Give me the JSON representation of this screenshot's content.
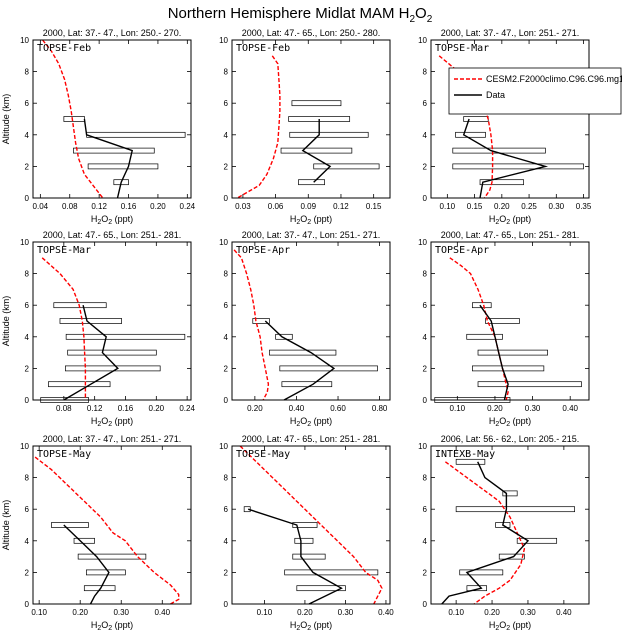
{
  "figure": {
    "title": "Northern Hemisphere Midlat MAM H",
    "title_species": "2",
    "title_o": "O",
    "title_species2": "2"
  },
  "legend": {
    "model_label": "CESM2.F2000climo.C96.C96.mg17",
    "data_label": "Data",
    "model_color": "#ff0000",
    "data_color": "#000000",
    "placement": "top-right of panel 3"
  },
  "chart_data": [
    {
      "type": "line",
      "panel_header": "2000, Lat: 37.- 47., Lon: 250.- 270.",
      "campaign": "TOPSE-Feb",
      "xlabel": "H2O2 (ppt)",
      "ylabel": "Altitude (km)",
      "xlim": [
        0.03,
        0.245
      ],
      "ylim": [
        0,
        10
      ],
      "xticks": [
        0.04,
        0.08,
        0.12,
        0.16,
        0.2,
        0.24
      ],
      "xtick_labels": [
        "0.04",
        "0.08",
        "0.12",
        "0.16",
        "0.20",
        "0.24"
      ],
      "yticks": [
        0,
        2,
        4,
        6,
        8,
        10
      ],
      "model": {
        "x": [
          0.043,
          0.055,
          0.065,
          0.073,
          0.078,
          0.082,
          0.085,
          0.088,
          0.092,
          0.1,
          0.125
        ],
        "y": [
          10,
          9.3,
          8.5,
          7.5,
          6.5,
          5.5,
          4.5,
          3.5,
          2.5,
          1.5,
          0
        ]
      },
      "data": {
        "x": [
          0.1,
          0.103,
          0.165,
          0.16,
          0.15,
          0.145
        ],
        "y": [
          5,
          4,
          3,
          2,
          1,
          0
        ]
      },
      "ranges": [
        {
          "y": 5,
          "lo": 0.072,
          "hi": 0.1
        },
        {
          "y": 4,
          "lo": 0.103,
          "hi": 0.237
        },
        {
          "y": 3,
          "lo": 0.085,
          "hi": 0.195
        },
        {
          "y": 2,
          "lo": 0.105,
          "hi": 0.2
        },
        {
          "y": 1,
          "lo": 0.14,
          "hi": 0.16
        }
      ]
    },
    {
      "type": "line",
      "panel_header": "2000, Lat: 47.- 65., Lon: 250.- 280.",
      "campaign": "TOPSE-Feb",
      "xlabel": "H2O2 (ppt)",
      "ylabel": "",
      "xlim": [
        0.02,
        0.165
      ],
      "ylim": [
        0,
        10
      ],
      "xticks": [
        0.03,
        0.06,
        0.09,
        0.12,
        0.15
      ],
      "xtick_labels": [
        "0.03",
        "0.06",
        "0.09",
        "0.12",
        "0.15"
      ],
      "yticks": [
        0,
        2,
        4,
        6,
        8,
        10
      ],
      "model": {
        "x": [
          0.057,
          0.062,
          0.063,
          0.064,
          0.064,
          0.063,
          0.062,
          0.058,
          0.052,
          0.045,
          0.025
        ],
        "y": [
          9,
          8.5,
          7.5,
          6.5,
          5.5,
          4.5,
          3.5,
          2.5,
          1.5,
          0.8,
          0
        ]
      },
      "data": {
        "x": [
          0.1,
          0.1,
          0.085,
          0.11,
          0.095
        ],
        "y": [
          5,
          4,
          3,
          2,
          1
        ]
      },
      "ranges": [
        {
          "y": 6,
          "lo": 0.075,
          "hi": 0.12
        },
        {
          "y": 5,
          "lo": 0.072,
          "hi": 0.128
        },
        {
          "y": 4,
          "lo": 0.073,
          "hi": 0.145
        },
        {
          "y": 3,
          "lo": 0.065,
          "hi": 0.13
        },
        {
          "y": 2,
          "lo": 0.095,
          "hi": 0.155
        },
        {
          "y": 1,
          "lo": 0.081,
          "hi": 0.105
        }
      ]
    },
    {
      "type": "line",
      "panel_header": "2000, Lat: 37.- 47., Lon: 251.- 271.",
      "campaign": "TOPSE-Mar",
      "xlabel": "H2O2 (ppt)",
      "ylabel": "",
      "xlim": [
        0.07,
        0.36
      ],
      "ylim": [
        0,
        10
      ],
      "xticks": [
        0.1,
        0.15,
        0.2,
        0.25,
        0.3,
        0.35
      ],
      "xtick_labels": [
        "0.10",
        "0.15",
        "0.20",
        "0.25",
        "0.30",
        "0.35"
      ],
      "yticks": [
        0,
        2,
        4,
        6,
        8,
        10
      ],
      "model": {
        "x": [
          0.085,
          0.12,
          0.145,
          0.165,
          0.175,
          0.18,
          0.183,
          0.183,
          0.182,
          0.178,
          0.168
        ],
        "y": [
          9,
          8,
          7,
          6,
          5,
          4,
          3,
          2,
          1,
          0.5,
          0
        ]
      },
      "data": {
        "x": [
          0.14,
          0.13,
          0.18,
          0.28,
          0.165,
          0.16
        ],
        "y": [
          5,
          4,
          3,
          2,
          1,
          0
        ]
      },
      "ranges": [
        {
          "y": 5,
          "lo": 0.13,
          "hi": 0.175
        },
        {
          "y": 4,
          "lo": 0.115,
          "hi": 0.17
        },
        {
          "y": 3,
          "lo": 0.11,
          "hi": 0.28
        },
        {
          "y": 2,
          "lo": 0.11,
          "hi": 0.35
        },
        {
          "y": 1,
          "lo": 0.16,
          "hi": 0.24
        }
      ]
    },
    {
      "type": "line",
      "panel_header": "2000, Lat: 47.- 65., Lon: 251.- 281.",
      "campaign": "TOPSE-Mar",
      "xlabel": "H2O2 (ppt)",
      "ylabel": "Altitude (km)",
      "xlim": [
        0.04,
        0.245
      ],
      "ylim": [
        0,
        10
      ],
      "xticks": [
        0.08,
        0.12,
        0.16,
        0.2,
        0.24
      ],
      "xtick_labels": [
        "0.08",
        "0.12",
        "0.16",
        "0.20",
        "0.24"
      ],
      "yticks": [
        0,
        2,
        4,
        6,
        8,
        10
      ],
      "model": {
        "x": [
          0.052,
          0.075,
          0.092,
          0.1,
          0.104,
          0.106,
          0.107,
          0.108,
          0.108,
          0.108,
          0.108
        ],
        "y": [
          9,
          8,
          7,
          6,
          5,
          4,
          3,
          2,
          1,
          0.5,
          0
        ]
      },
      "data": {
        "x": [
          0.105,
          0.11,
          0.135,
          0.13,
          0.15,
          0.115,
          0.08
        ],
        "y": [
          6,
          5,
          4,
          3,
          2,
          1,
          0
        ]
      },
      "ranges": [
        {
          "y": 6,
          "lo": 0.067,
          "hi": 0.135
        },
        {
          "y": 5,
          "lo": 0.075,
          "hi": 0.155
        },
        {
          "y": 4,
          "lo": 0.083,
          "hi": 0.237
        },
        {
          "y": 3,
          "lo": 0.085,
          "hi": 0.2
        },
        {
          "y": 2,
          "lo": 0.082,
          "hi": 0.205
        },
        {
          "y": 1,
          "lo": 0.06,
          "hi": 0.14
        },
        {
          "y": 0,
          "lo": 0.05,
          "hi": 0.112
        }
      ]
    },
    {
      "type": "line",
      "panel_header": "2000, Lat: 37.- 47., Lon: 251.- 271.",
      "campaign": "TOPSE-Apr",
      "xlabel": "H2O2 (ppt)",
      "ylabel": "",
      "xlim": [
        0.09,
        0.85
      ],
      "ylim": [
        0,
        10
      ],
      "xticks": [
        0.2,
        0.4,
        0.6,
        0.8
      ],
      "xtick_labels": [
        "0.20",
        "0.40",
        "0.60",
        "0.80"
      ],
      "yticks": [
        0,
        2,
        4,
        6,
        8,
        10
      ],
      "model": {
        "x": [
          0.1,
          0.135,
          0.16,
          0.18,
          0.195,
          0.205,
          0.215,
          0.225,
          0.235,
          0.25,
          0.265,
          0.26,
          0.24
        ],
        "y": [
          9.5,
          9,
          8,
          7,
          6,
          5,
          4.5,
          4,
          3,
          2,
          1,
          0.5,
          0
        ]
      },
      "data": {
        "x": [
          0.25,
          0.33,
          0.47,
          0.58,
          0.48,
          0.34
        ],
        "y": [
          5,
          4,
          3,
          2,
          1,
          0
        ]
      },
      "ranges": [
        {
          "y": 5,
          "lo": 0.19,
          "hi": 0.27
        },
        {
          "y": 4,
          "lo": 0.3,
          "hi": 0.38
        },
        {
          "y": 3,
          "lo": 0.27,
          "hi": 0.59
        },
        {
          "y": 2,
          "lo": 0.32,
          "hi": 0.79
        },
        {
          "y": 1,
          "lo": 0.33,
          "hi": 0.57
        }
      ]
    },
    {
      "type": "line",
      "panel_header": "2000, Lat: 47.- 65., Lon: 251.- 281.",
      "campaign": "TOPSE-Apr",
      "xlabel": "H2O2 (ppt)",
      "ylabel": "",
      "xlim": [
        0.03,
        0.45
      ],
      "ylim": [
        0,
        10
      ],
      "xticks": [
        0.1,
        0.2,
        0.3,
        0.4
      ],
      "xtick_labels": [
        "0.10",
        "0.20",
        "0.30",
        "0.40"
      ],
      "yticks": [
        0,
        2,
        4,
        6,
        8,
        10
      ],
      "model": {
        "x": [
          0.08,
          0.11,
          0.135,
          0.155,
          0.17,
          0.18,
          0.19,
          0.2,
          0.21,
          0.22,
          0.23,
          0.235,
          0.23
        ],
        "y": [
          9,
          8.5,
          8,
          7,
          6,
          5,
          4.5,
          4,
          3,
          2,
          1,
          0.5,
          0
        ]
      },
      "data": {
        "x": [
          0.16,
          0.19,
          0.2,
          0.21,
          0.22,
          0.235,
          0.225
        ],
        "y": [
          6,
          5,
          4,
          3,
          2,
          1,
          0
        ]
      },
      "ranges": [
        {
          "y": 6,
          "lo": 0.14,
          "hi": 0.19
        },
        {
          "y": 5,
          "lo": 0.175,
          "hi": 0.265
        },
        {
          "y": 4,
          "lo": 0.125,
          "hi": 0.22
        },
        {
          "y": 3,
          "lo": 0.155,
          "hi": 0.34
        },
        {
          "y": 2,
          "lo": 0.14,
          "hi": 0.33
        },
        {
          "y": 1,
          "lo": 0.155,
          "hi": 0.43
        },
        {
          "y": 0,
          "lo": 0.04,
          "hi": 0.24
        }
      ]
    },
    {
      "type": "line",
      "panel_header": "2000, Lat: 37.- 47., Lon: 251.- 271.",
      "campaign": "TOPSE-May",
      "xlabel": "H2O2 (ppt)",
      "ylabel": "Altitude (km)",
      "xlim": [
        0.085,
        0.47
      ],
      "ylim": [
        0,
        10
      ],
      "xticks": [
        0.1,
        0.2,
        0.3,
        0.4
      ],
      "xtick_labels": [
        "0.10",
        "0.20",
        "0.30",
        "0.40"
      ],
      "yticks": [
        0,
        2,
        4,
        6,
        8,
        10
      ],
      "model": {
        "x": [
          0.09,
          0.13,
          0.17,
          0.21,
          0.25,
          0.28,
          0.31,
          0.34,
          0.38,
          0.42,
          0.44,
          0.44,
          0.42
        ],
        "y": [
          9.3,
          8.5,
          7.5,
          6.5,
          5.5,
          4.5,
          4,
          3,
          2,
          1.2,
          0.6,
          0.3,
          0
        ]
      },
      "data": {
        "x": [
          0.16,
          0.2,
          0.24,
          0.27,
          0.25,
          0.235,
          0.225
        ],
        "y": [
          5,
          4,
          3,
          2,
          1,
          0.5,
          0
        ]
      },
      "ranges": [
        {
          "y": 5,
          "lo": 0.13,
          "hi": 0.22
        },
        {
          "y": 4,
          "lo": 0.185,
          "hi": 0.235
        },
        {
          "y": 3,
          "lo": 0.195,
          "hi": 0.36
        },
        {
          "y": 2,
          "lo": 0.215,
          "hi": 0.31
        },
        {
          "y": 1,
          "lo": 0.21,
          "hi": 0.285
        }
      ]
    },
    {
      "type": "line",
      "panel_header": "2000, Lat: 47.- 65., Lon: 251.- 281.",
      "campaign": "TOPSE-May",
      "xlabel": "H2O2 (ppt)",
      "ylabel": "",
      "xlim": [
        0.02,
        0.41
      ],
      "ylim": [
        0,
        10
      ],
      "xticks": [
        0.1,
        0.2,
        0.3,
        0.4
      ],
      "xtick_labels": [
        "0.10",
        "0.20",
        "0.30",
        "0.40"
      ],
      "yticks": [
        0,
        2,
        4,
        6,
        8,
        10
      ],
      "model": {
        "x": [
          0.04,
          0.08,
          0.12,
          0.16,
          0.2,
          0.24,
          0.28,
          0.32,
          0.35,
          0.38,
          0.39,
          0.38,
          0.37
        ],
        "y": [
          10,
          9,
          8,
          7,
          6,
          5,
          4,
          3,
          2,
          1.5,
          1,
          0.5,
          0
        ]
      },
      "data": {
        "x": [
          0.06,
          0.18,
          0.19,
          0.19,
          0.22,
          0.29,
          0.21
        ],
        "y": [
          6,
          5,
          4,
          3,
          2,
          1,
          0
        ]
      },
      "ranges": [
        {
          "y": 6,
          "lo": 0.05,
          "hi": 0.065
        },
        {
          "y": 5,
          "lo": 0.17,
          "hi": 0.23
        },
        {
          "y": 4,
          "lo": 0.175,
          "hi": 0.22
        },
        {
          "y": 3,
          "lo": 0.17,
          "hi": 0.25
        },
        {
          "y": 2,
          "lo": 0.15,
          "hi": 0.38
        },
        {
          "y": 1,
          "lo": 0.18,
          "hi": 0.3
        }
      ]
    },
    {
      "type": "line",
      "panel_header": "2006, Lat: 56.- 62., Lon: 205.- 215.",
      "campaign": "INTEXB-May",
      "xlabel": "H2O2 (ppt)",
      "ylabel": "",
      "xlim": [
        0.03,
        0.47
      ],
      "ylim": [
        0,
        10
      ],
      "xticks": [
        0.1,
        0.2,
        0.3,
        0.4
      ],
      "xtick_labels": [
        "0.10",
        "0.20",
        "0.30",
        "0.40"
      ],
      "yticks": [
        0,
        2,
        4,
        6,
        8,
        10
      ],
      "model": {
        "x": [
          0.07,
          0.1,
          0.13,
          0.16,
          0.19,
          0.22,
          0.25,
          0.27,
          0.29,
          0.28,
          0.25,
          0.22,
          0.18,
          0.15
        ],
        "y": [
          9,
          8.5,
          8,
          7.5,
          7,
          6.5,
          5.5,
          4.5,
          3.5,
          2.5,
          1.5,
          1,
          0.5,
          0
        ]
      },
      "data": {
        "x": [
          0.16,
          0.18,
          0.24,
          0.24,
          0.23,
          0.3,
          0.26,
          0.13,
          0.17,
          0.08,
          0.06
        ],
        "y": [
          9,
          8,
          7,
          6,
          5,
          4,
          3,
          2,
          1,
          0.5,
          0
        ]
      },
      "ranges": [
        {
          "y": 9,
          "lo": 0.1,
          "hi": 0.18
        },
        {
          "y": 7,
          "lo": 0.23,
          "hi": 0.27
        },
        {
          "y": 6,
          "lo": 0.1,
          "hi": 0.43
        },
        {
          "y": 5,
          "lo": 0.21,
          "hi": 0.25
        },
        {
          "y": 4,
          "lo": 0.27,
          "hi": 0.38
        },
        {
          "y": 3,
          "lo": 0.22,
          "hi": 0.29
        },
        {
          "y": 2,
          "lo": 0.11,
          "hi": 0.23
        },
        {
          "y": 1,
          "lo": 0.13,
          "hi": 0.185
        }
      ]
    }
  ]
}
